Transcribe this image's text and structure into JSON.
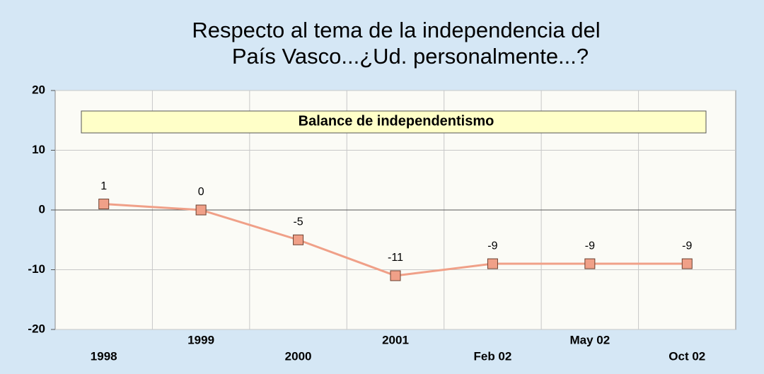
{
  "chart_data": {
    "type": "line",
    "title": [
      "Respecto al tema de la independencia del",
      "País Vasco...¿Ud. personalmente...?"
    ],
    "annotation": "Balance de independentismo",
    "categories": [
      "1998",
      "1999",
      "2000",
      "2001",
      "Feb 02",
      "May 02",
      "Oct 02"
    ],
    "values": [
      1,
      0,
      -5,
      -11,
      -9,
      -9,
      -9
    ],
    "color": "#f0a088",
    "ylim": [
      -20,
      20
    ],
    "yticks": [
      -20,
      -10,
      0,
      10,
      20
    ],
    "grid": true
  }
}
